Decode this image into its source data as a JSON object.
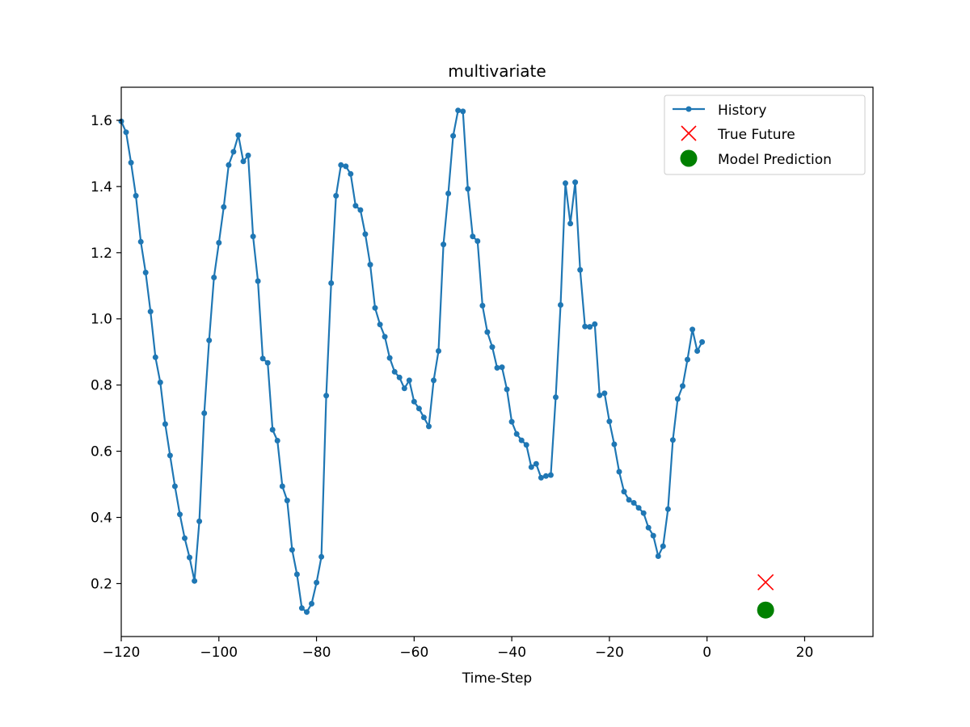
{
  "chart_data": {
    "type": "line",
    "title": "multivariate",
    "xlabel": "Time-Step",
    "ylabel": "",
    "xlim": [
      -120,
      34
    ],
    "ylim": [
      0.04,
      1.7
    ],
    "xticks": [
      -120,
      -100,
      -80,
      -60,
      -40,
      -20,
      0,
      20
    ],
    "xtick_labels": [
      "−120",
      "−100",
      "−80",
      "−60",
      "−40",
      "−20",
      "0",
      "20"
    ],
    "yticks": [
      0.2,
      0.4,
      0.6,
      0.8,
      1.0,
      1.2,
      1.4,
      1.6
    ],
    "ytick_labels": [
      "0.2",
      "0.4",
      "0.6",
      "0.8",
      "1.0",
      "1.2",
      "1.4",
      "1.6"
    ],
    "grid": false,
    "legend_position": "top-right",
    "series": [
      {
        "name": "History",
        "color": "#1f77b4",
        "marker": "dot",
        "x_start": -120,
        "x_step": 1,
        "values": [
          1.597,
          1.564,
          1.472,
          1.372,
          1.233,
          1.14,
          1.022,
          0.884,
          0.808,
          0.682,
          0.587,
          0.494,
          0.409,
          0.337,
          0.279,
          0.208,
          0.388,
          0.715,
          0.935,
          1.125,
          1.23,
          1.338,
          1.465,
          1.505,
          1.555,
          1.476,
          1.494,
          1.249,
          1.114,
          0.88,
          0.867,
          0.665,
          0.632,
          0.494,
          0.451,
          0.302,
          0.228,
          0.126,
          0.114,
          0.139,
          0.203,
          0.281,
          0.768,
          1.108,
          1.372,
          1.465,
          1.461,
          1.438,
          1.342,
          1.329,
          1.256,
          1.164,
          1.033,
          0.983,
          0.946,
          0.882,
          0.84,
          0.823,
          0.79,
          0.814,
          0.75,
          0.729,
          0.702,
          0.675,
          0.814,
          0.903,
          1.225,
          1.379,
          1.553,
          1.63,
          1.627,
          1.393,
          1.249,
          1.235,
          1.04,
          0.96,
          0.915,
          0.852,
          0.854,
          0.787,
          0.689,
          0.652,
          0.633,
          0.619,
          0.552,
          0.562,
          0.52,
          0.525,
          0.528,
          0.763,
          1.042,
          1.41,
          1.288,
          1.413,
          1.148,
          0.977,
          0.976,
          0.984,
          0.769,
          0.775,
          0.69,
          0.621,
          0.538,
          0.478,
          0.453,
          0.444,
          0.429,
          0.413,
          0.369,
          0.345,
          0.283,
          0.313,
          0.425,
          0.634,
          0.758,
          0.797,
          0.877,
          0.968,
          0.903,
          0.93
        ]
      },
      {
        "name": "True Future",
        "color": "#ff0000",
        "marker": "x",
        "points": [
          {
            "x": 12,
            "y": 0.204
          }
        ]
      },
      {
        "name": "Model Prediction",
        "color": "#008000",
        "marker": "circle",
        "points": [
          {
            "x": 12,
            "y": 0.12
          }
        ]
      }
    ]
  }
}
